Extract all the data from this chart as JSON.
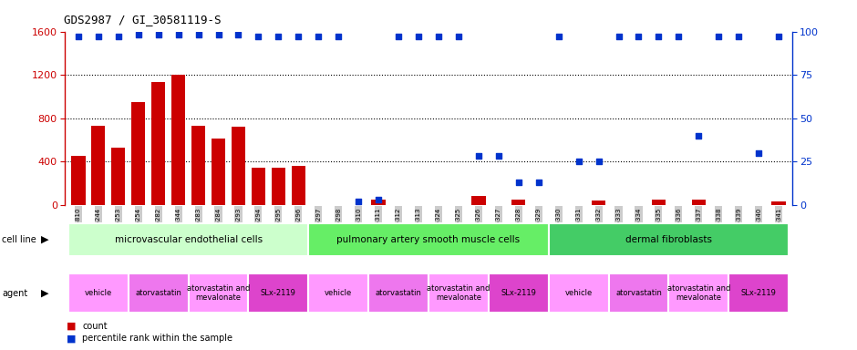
{
  "title": "GDS2987 / GI_30581119-S",
  "samples": [
    "GSM214810",
    "GSM215244",
    "GSM215253",
    "GSM215254",
    "GSM215282",
    "GSM215344",
    "GSM215283",
    "GSM215284",
    "GSM215293",
    "GSM215294",
    "GSM215295",
    "GSM215296",
    "GSM215297",
    "GSM215298",
    "GSM215310",
    "GSM215311",
    "GSM215312",
    "GSM215313",
    "GSM215324",
    "GSM215325",
    "GSM215326",
    "GSM215327",
    "GSM215328",
    "GSM215329",
    "GSM215330",
    "GSM215331",
    "GSM215332",
    "GSM215333",
    "GSM215334",
    "GSM215335",
    "GSM215336",
    "GSM215337",
    "GSM215338",
    "GSM215339",
    "GSM215340",
    "GSM215341"
  ],
  "counts": [
    450,
    730,
    530,
    950,
    1130,
    1200,
    730,
    610,
    720,
    340,
    340,
    360,
    0,
    0,
    0,
    50,
    0,
    0,
    0,
    0,
    80,
    0,
    50,
    0,
    0,
    0,
    35,
    0,
    0,
    50,
    0,
    50,
    0,
    0,
    0,
    30
  ],
  "percentiles": [
    97,
    97,
    97,
    98,
    98,
    98,
    98,
    98,
    98,
    97,
    97,
    97,
    97,
    97,
    2,
    3,
    97,
    97,
    97,
    97,
    28,
    28,
    13,
    13,
    97,
    25,
    25,
    97,
    97,
    97,
    97,
    40,
    97,
    97,
    30,
    97
  ],
  "bar_color": "#cc0000",
  "dot_color": "#0033cc",
  "ylim_left": [
    0,
    1600
  ],
  "ylim_right": [
    0,
    100
  ],
  "yticks_left": [
    0,
    400,
    800,
    1200,
    1600
  ],
  "yticks_right": [
    0,
    25,
    50,
    75,
    100
  ],
  "cell_line_groups": [
    {
      "label": "microvascular endothelial cells",
      "start": 0,
      "end": 11,
      "color": "#ccffcc"
    },
    {
      "label": "pulmonary artery smooth muscle cells",
      "start": 12,
      "end": 23,
      "color": "#66ee66"
    },
    {
      "label": "dermal fibroblasts",
      "start": 24,
      "end": 35,
      "color": "#44cc66"
    }
  ],
  "agent_groups": [
    {
      "label": "vehicle",
      "start": 0,
      "end": 2,
      "color": "#ff99ff"
    },
    {
      "label": "atorvastatin",
      "start": 3,
      "end": 5,
      "color": "#ee77ee"
    },
    {
      "label": "atorvastatin and\nmevalonate",
      "start": 6,
      "end": 8,
      "color": "#ff99ff"
    },
    {
      "label": "SLx-2119",
      "start": 9,
      "end": 11,
      "color": "#dd44cc"
    },
    {
      "label": "vehicle",
      "start": 12,
      "end": 14,
      "color": "#ff99ff"
    },
    {
      "label": "atorvastatin",
      "start": 15,
      "end": 17,
      "color": "#ee77ee"
    },
    {
      "label": "atorvastatin and\nmevalonate",
      "start": 18,
      "end": 20,
      "color": "#ff99ff"
    },
    {
      "label": "SLx-2119",
      "start": 21,
      "end": 23,
      "color": "#dd44cc"
    },
    {
      "label": "vehicle",
      "start": 24,
      "end": 26,
      "color": "#ff99ff"
    },
    {
      "label": "atorvastatin",
      "start": 27,
      "end": 29,
      "color": "#ee77ee"
    },
    {
      "label": "atorvastatin and\nmevalonate",
      "start": 30,
      "end": 32,
      "color": "#ff99ff"
    },
    {
      "label": "SLx-2119",
      "start": 33,
      "end": 35,
      "color": "#dd44cc"
    }
  ],
  "bg_color": "#ffffff"
}
